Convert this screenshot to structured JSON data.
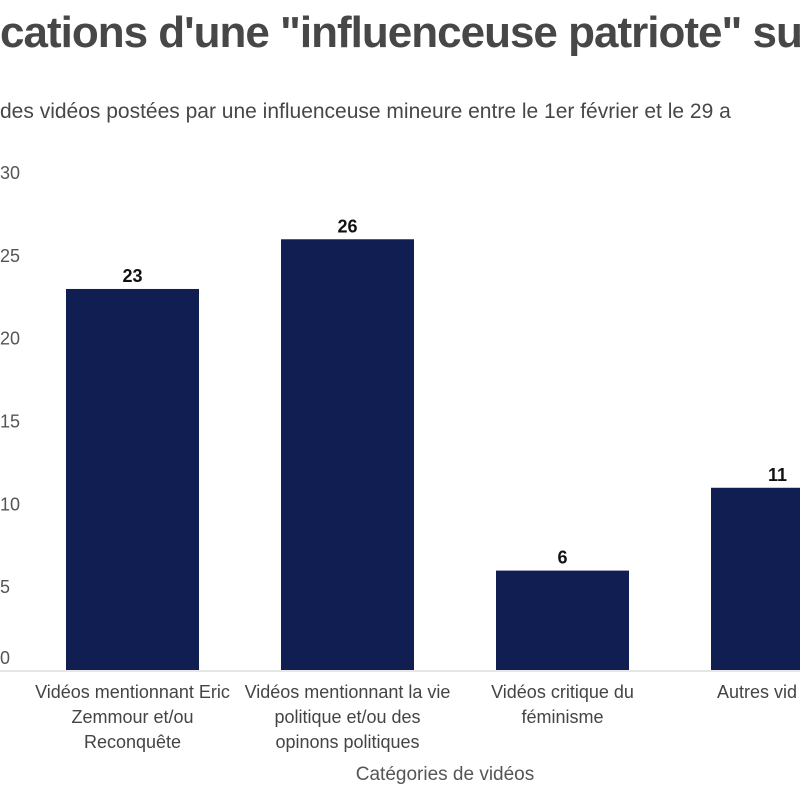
{
  "chart_data": {
    "type": "bar",
    "title": "cations d'une \"influenceuse patriote\" sur",
    "subtitle": "des vidéos postées par une influenceuse mineure entre le 1er février et le 29 a",
    "xlabel": "Catégories de vidéos",
    "ylabel": "",
    "categories": [
      "Vidéos mentionnant Eric Zemmour et/ou Reconquête",
      "Vidéos mentionnant la vie politique et/ou des opinons politiques",
      "Vidéos critique du féminisme",
      "Autres vid"
    ],
    "values": [
      23,
      26,
      6,
      11
    ],
    "data_labels": [
      "23",
      "26",
      "6",
      "11"
    ],
    "ylim": [
      0,
      30
    ],
    "yticks": [
      "0",
      "5",
      "10",
      "15",
      "20",
      "25",
      "30"
    ],
    "grid": false,
    "bar_color": "#101e52"
  }
}
